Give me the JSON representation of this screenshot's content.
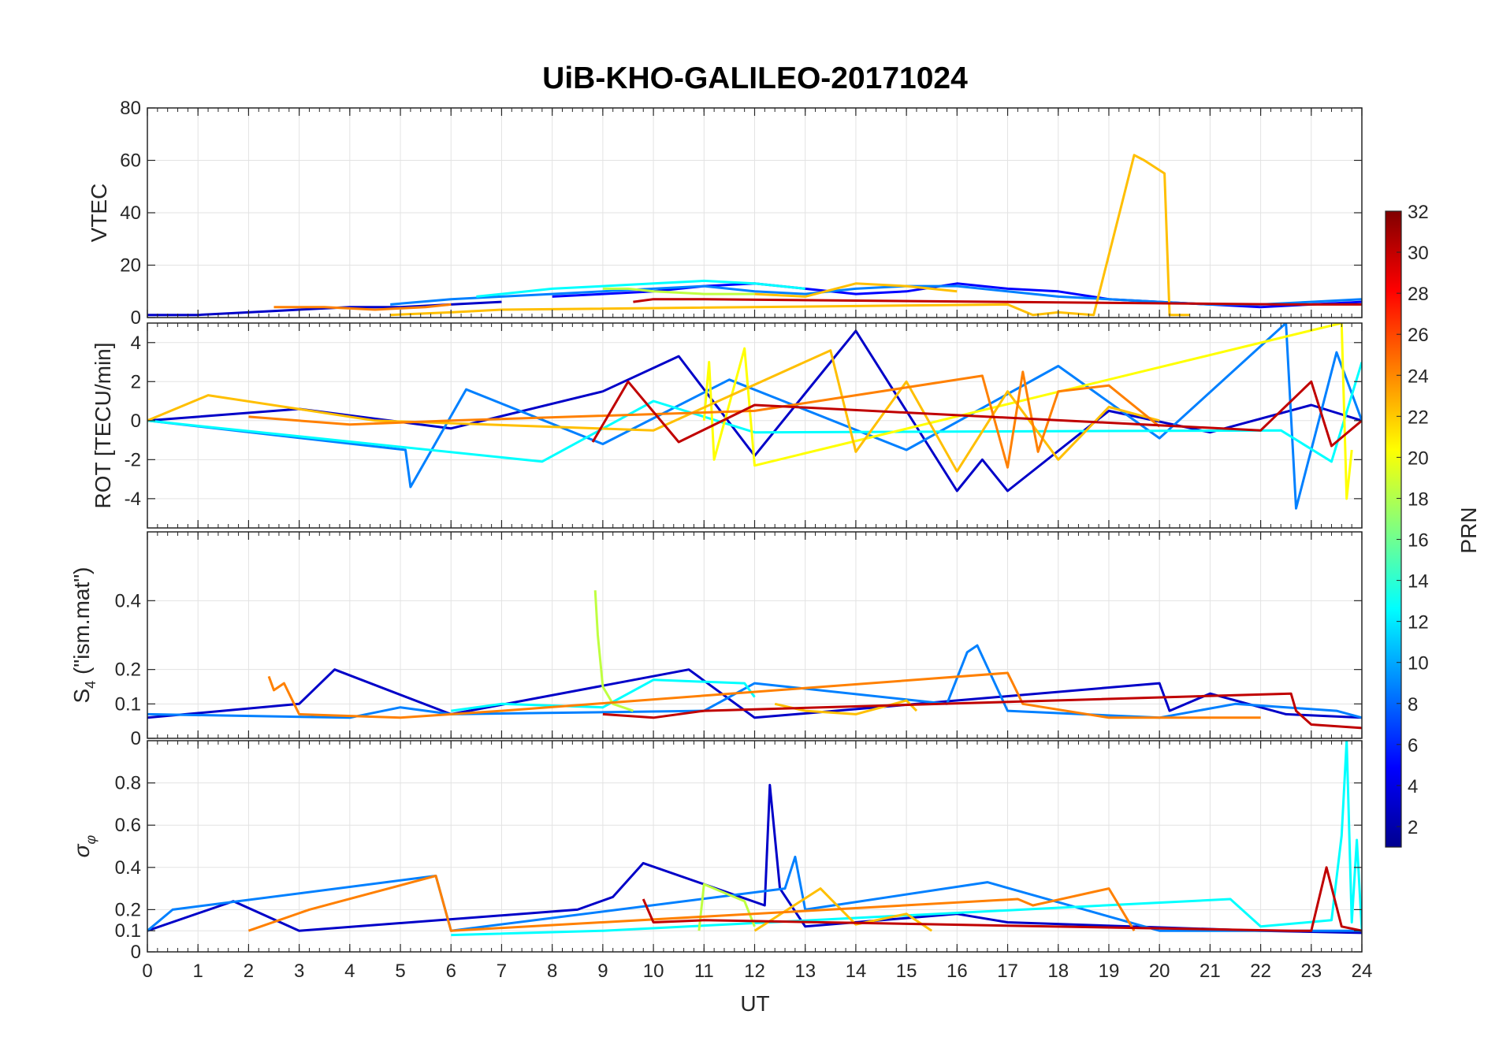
{
  "chart_data": {
    "type": "line",
    "title": "UiB-KHO-GALILEO-20171024",
    "xlabel": "UT",
    "xlim": [
      0,
      24
    ],
    "xticks": [
      "0",
      "1",
      "2",
      "3",
      "4",
      "5",
      "6",
      "7",
      "8",
      "9",
      "10",
      "11",
      "12",
      "13",
      "14",
      "15",
      "16",
      "17",
      "18",
      "19",
      "20",
      "21",
      "22",
      "23",
      "24"
    ],
    "grid": true,
    "colormap": "jet",
    "colorbar": {
      "label": "PRN",
      "range": [
        1,
        32
      ],
      "ticks": [
        "2",
        "4",
        "6",
        "8",
        "10",
        "12",
        "14",
        "16",
        "18",
        "20",
        "22",
        "24",
        "26",
        "28",
        "30",
        "32"
      ],
      "colors": [
        "#00008f",
        "#0000c8",
        "#0000ff",
        "#0040ff",
        "#0080ff",
        "#00bfff",
        "#00ffff",
        "#40ffbf",
        "#80ff80",
        "#bfff40",
        "#ffff00",
        "#ffbf00",
        "#ff8000",
        "#ff4000",
        "#ff0000",
        "#c00000",
        "#800000"
      ]
    },
    "panels": [
      {
        "ylabel": "VTEC",
        "ylim": [
          0,
          80
        ],
        "yticks": [
          "0",
          "20",
          "40",
          "60",
          "80"
        ],
        "series": [
          {
            "prn": 3,
            "x": [
              0,
              1,
              2,
              3,
              4,
              5,
              6,
              7
            ],
            "y": [
              1,
              1,
              2,
              3,
              4,
              4,
              5,
              6
            ]
          },
          {
            "prn": 5,
            "x": [
              8,
              9,
              10,
              11,
              12,
              13,
              14,
              15,
              16,
              17,
              18,
              19,
              20,
              21,
              22,
              23,
              24
            ],
            "y": [
              8,
              9,
              10,
              12,
              13,
              11,
              9,
              10,
              13,
              11,
              10,
              7,
              6,
              5,
              4,
              5,
              6
            ]
          },
          {
            "prn": 8,
            "x": [
              4.8,
              6,
              7,
              8,
              9,
              10,
              11,
              12,
              13,
              14,
              15,
              16,
              17,
              18,
              19,
              20,
              21,
              22,
              23,
              24
            ],
            "y": [
              5,
              7,
              8,
              9,
              10,
              11,
              12,
              10,
              9,
              11,
              12,
              12,
              10,
              8,
              7,
              6,
              5,
              5,
              6,
              7
            ]
          },
          {
            "prn": 12,
            "x": [
              6.5,
              7,
              8,
              9,
              10,
              11,
              12,
              13
            ],
            "y": [
              8,
              9,
              11,
              12,
              13,
              14,
              13,
              11
            ]
          },
          {
            "prn": 19,
            "x": [
              9,
              9.5,
              10,
              11,
              12
            ],
            "y": [
              11,
              11,
              10,
              9,
              9
            ]
          },
          {
            "prn": 22,
            "x": [
              12,
              13,
              14,
              15,
              16
            ],
            "y": [
              9,
              8,
              13,
              12,
              10
            ]
          },
          {
            "prn": 23,
            "x": [
              4.8,
              6,
              7,
              17,
              17.5,
              18,
              18.7,
              19.5,
              19.7,
              20.1,
              20.2,
              20.6
            ],
            "y": [
              1,
              2,
              3,
              5,
              1,
              2,
              1,
              62,
              60,
              55,
              1,
              1
            ]
          },
          {
            "prn": 25,
            "x": [
              2.5,
              3.5,
              4.5,
              5.5,
              6
            ],
            "y": [
              4,
              4,
              3,
              4,
              5
            ]
          },
          {
            "prn": 31,
            "x": [
              9.6,
              10,
              11,
              22.5,
              23,
              24
            ],
            "y": [
              6,
              7,
              7,
              5,
              5,
              5
            ]
          }
        ]
      },
      {
        "ylabel": "ROT [TECU/min]",
        "ylim": [
          -5.5,
          5
        ],
        "yticks": [
          "-4",
          "-2",
          "0",
          "2",
          "4"
        ],
        "series": [
          {
            "prn": 3,
            "x": [
              0,
              3,
              6,
              9,
              10.5,
              12,
              14,
              16,
              16.5,
              17,
              19,
              21,
              23,
              24
            ],
            "y": [
              0,
              0.6,
              -0.4,
              1.5,
              3.3,
              -1.8,
              4.6,
              -3.6,
              -2,
              -3.6,
              0.5,
              -0.6,
              0.8,
              0
            ]
          },
          {
            "prn": 8,
            "x": [
              0,
              5.1,
              5.2,
              6.3,
              9,
              11.5,
              15,
              18,
              20,
              22.5,
              22.7,
              23.5,
              24
            ],
            "y": [
              0,
              -1.5,
              -3.4,
              1.6,
              -1.2,
              2.1,
              -1.5,
              2.8,
              -0.9,
              5,
              -4.5,
              3.5,
              0
            ]
          },
          {
            "prn": 12,
            "x": [
              0,
              7.8,
              10,
              12,
              22.4,
              23.4,
              24
            ],
            "y": [
              0,
              -2.1,
              1,
              -0.6,
              -0.5,
              -2.1,
              3
            ]
          },
          {
            "prn": 20,
            "x": [
              11,
              11.1,
              11.2,
              11.8,
              12,
              23.6,
              23.7,
              23.8
            ],
            "y": [
              0,
              3,
              -2,
              3.7,
              -2.3,
              5,
              -4,
              -1.5
            ]
          },
          {
            "prn": 22,
            "x": [
              0,
              1.2,
              4.5,
              10,
              13.5,
              14,
              15,
              16,
              17,
              18,
              19,
              20
            ],
            "y": [
              0,
              1.3,
              0,
              -0.5,
              3.6,
              -1.6,
              2,
              -2.6,
              1.5,
              -2,
              0.7,
              0
            ]
          },
          {
            "prn": 25,
            "x": [
              2,
              4,
              6,
              12,
              16.5,
              17,
              17.3,
              17.6,
              18,
              19,
              20
            ],
            "y": [
              0.2,
              -0.2,
              0,
              0.5,
              2.3,
              -2.4,
              2.5,
              -1.6,
              1.5,
              1.8,
              -0.3
            ]
          },
          {
            "prn": 31,
            "x": [
              8.8,
              9.5,
              10.5,
              12,
              22,
              23,
              23.4,
              24
            ],
            "y": [
              -1.1,
              2,
              -1.1,
              0.8,
              -0.5,
              2,
              -1.3,
              0
            ]
          }
        ]
      },
      {
        "ylabel": "S4 (\"ism.mat\")",
        "ylim": [
          0,
          0.6
        ],
        "yticks": [
          "0",
          "0.1",
          "0.2",
          "0.4"
        ],
        "series": [
          {
            "prn": 3,
            "x": [
              0,
              3,
              3.7,
              6,
              10.7,
              12,
              20,
              20.2,
              21,
              22.5,
              24
            ],
            "y": [
              0.06,
              0.1,
              0.2,
              0.07,
              0.2,
              0.06,
              0.16,
              0.08,
              0.13,
              0.07,
              0.06
            ]
          },
          {
            "prn": 8,
            "x": [
              0,
              4,
              5,
              6,
              11,
              12,
              15.8,
              16.2,
              16.4,
              17,
              20,
              21.5,
              23.5,
              24
            ],
            "y": [
              0.07,
              0.06,
              0.09,
              0.07,
              0.08,
              0.16,
              0.1,
              0.25,
              0.27,
              0.08,
              0.06,
              0.1,
              0.08,
              0.06
            ]
          },
          {
            "prn": 12,
            "x": [
              6,
              7,
              9,
              10,
              11.8,
              12
            ],
            "y": [
              0.08,
              0.1,
              0.09,
              0.17,
              0.16,
              0.12
            ]
          },
          {
            "prn": 19,
            "x": [
              8.85,
              8.9,
              9.0,
              9.2,
              9.6
            ],
            "y": [
              0.43,
              0.3,
              0.15,
              0.1,
              0.08
            ]
          },
          {
            "prn": 22,
            "x": [
              12.4,
              13,
              14,
              15,
              15.2
            ],
            "y": [
              0.1,
              0.08,
              0.07,
              0.11,
              0.08
            ]
          },
          {
            "prn": 25,
            "x": [
              2.4,
              2.5,
              2.7,
              3,
              5,
              7,
              17,
              17.1,
              17.3,
              19,
              22
            ],
            "y": [
              0.18,
              0.14,
              0.16,
              0.07,
              0.06,
              0.08,
              0.19,
              0.16,
              0.1,
              0.06,
              0.06
            ]
          },
          {
            "prn": 31,
            "x": [
              9,
              10,
              11,
              22.6,
              22.7,
              23,
              24
            ],
            "y": [
              0.07,
              0.06,
              0.08,
              0.13,
              0.08,
              0.04,
              0.03
            ]
          }
        ]
      },
      {
        "ylabel": "σφ",
        "ylim": [
          0,
          1
        ],
        "yticks": [
          "0",
          "0.1",
          "0.2",
          "0.4",
          "0.6",
          "0.8"
        ],
        "series": [
          {
            "prn": 3,
            "x": [
              0,
              1.7,
              3,
              8.5,
              9.2,
              9.8,
              12.2,
              12.3,
              12.5,
              13,
              16,
              17,
              22,
              24
            ],
            "y": [
              0.1,
              0.24,
              0.1,
              0.2,
              0.26,
              0.42,
              0.22,
              0.79,
              0.3,
              0.12,
              0.18,
              0.14,
              0.1,
              0.09
            ]
          },
          {
            "prn": 8,
            "x": [
              0,
              0.5,
              5.7,
              6,
              12.6,
              12.8,
              13,
              16.6,
              20,
              24
            ],
            "y": [
              0.1,
              0.2,
              0.36,
              0.1,
              0.3,
              0.45,
              0.2,
              0.33,
              0.1,
              0.1
            ]
          },
          {
            "prn": 12,
            "x": [
              6,
              9,
              21.4,
              22,
              23.4,
              23.6,
              23.7,
              23.8,
              23.9,
              24
            ],
            "y": [
              0.08,
              0.1,
              0.25,
              0.12,
              0.15,
              0.55,
              1.0,
              0.14,
              0.53,
              0.1
            ]
          },
          {
            "prn": 19,
            "x": [
              10.9,
              11.0,
              11.8,
              12
            ],
            "y": [
              0.1,
              0.32,
              0.24,
              0.12
            ]
          },
          {
            "prn": 22,
            "x": [
              12,
              13.3,
              14,
              15,
              15.5
            ],
            "y": [
              0.1,
              0.3,
              0.13,
              0.18,
              0.1
            ]
          },
          {
            "prn": 25,
            "x": [
              2,
              3.2,
              5.7,
              6,
              17.2,
              17.5,
              19,
              19.5
            ],
            "y": [
              0.1,
              0.2,
              0.36,
              0.1,
              0.25,
              0.22,
              0.3,
              0.1
            ]
          },
          {
            "prn": 31,
            "x": [
              9.8,
              10,
              11,
              22.6,
              23,
              23.3,
              23.6,
              24
            ],
            "y": [
              0.25,
              0.14,
              0.15,
              0.1,
              0.1,
              0.4,
              0.12,
              0.1
            ]
          }
        ]
      }
    ]
  }
}
